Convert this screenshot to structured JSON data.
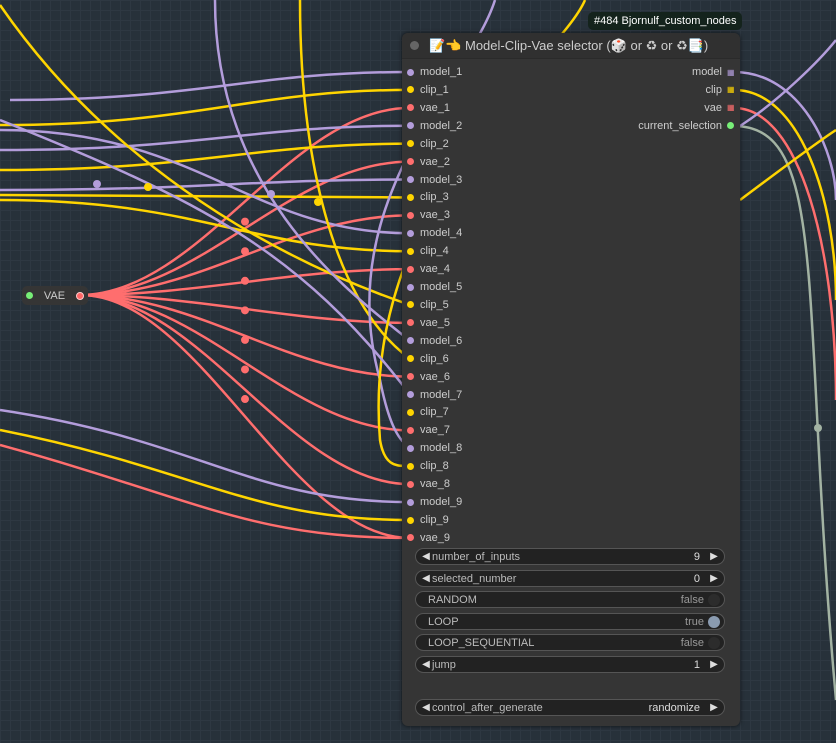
{
  "badge": "#484 Bjornulf_custom_nodes",
  "node": {
    "title": "📝👈 Model-Clip-Vae selector (🎲 or ♻ or ♻📑)",
    "inputs": [
      "model_1",
      "clip_1",
      "vae_1",
      "model_2",
      "clip_2",
      "vae_2",
      "model_3",
      "clip_3",
      "vae_3",
      "model_4",
      "clip_4",
      "vae_4",
      "model_5",
      "clip_5",
      "vae_5",
      "model_6",
      "clip_6",
      "vae_6",
      "model_7",
      "clip_7",
      "vae_7",
      "model_8",
      "clip_8",
      "vae_8",
      "model_9",
      "clip_9",
      "vae_9"
    ],
    "outputs": [
      {
        "label": "model",
        "type": "model"
      },
      {
        "label": "clip",
        "type": "clip"
      },
      {
        "label": "vae",
        "type": "vae"
      },
      {
        "label": "current_selection",
        "type": "selection"
      }
    ],
    "widgets": [
      {
        "label": "number_of_inputs",
        "value": "9",
        "kind": "number"
      },
      {
        "label": "selected_number",
        "value": "0",
        "kind": "number"
      },
      {
        "label": "RANDOM",
        "value": "false",
        "kind": "toggle",
        "on": false
      },
      {
        "label": "LOOP",
        "value": "true",
        "kind": "toggle",
        "on": true
      },
      {
        "label": "LOOP_SEQUENTIAL",
        "value": "false",
        "kind": "toggle",
        "on": false
      },
      {
        "label": "jump",
        "value": "1",
        "kind": "number"
      },
      {
        "label": "control_after_generate",
        "value": "randomize",
        "kind": "combo"
      }
    ]
  },
  "vae_node": {
    "label": "VAE"
  },
  "colors": {
    "model": "#b39ddb",
    "clip": "#ffd500",
    "vae": "#ff6e6e",
    "selection": "#77ee77",
    "link": "#a3b3a3"
  }
}
